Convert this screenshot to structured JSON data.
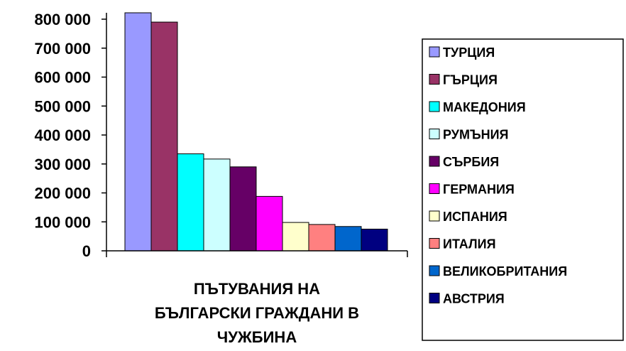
{
  "chart_data": {
    "type": "bar",
    "title": "",
    "xlabel": "ПЪТУВАНИЯ НА БЪЛГАРСКИ ГРАЖДАНИ В ЧУЖБИНА",
    "xlabel_lines": [
      "ПЪТУВАНИЯ НА",
      "БЪЛГАРСКИ ГРАЖДАНИ В",
      "ЧУЖБИНА"
    ],
    "ylabel": "",
    "ylim": [
      0,
      800000
    ],
    "ytick_values": [
      0,
      100000,
      200000,
      300000,
      400000,
      500000,
      600000,
      700000,
      800000
    ],
    "ytick_labels": [
      "0",
      "100 000",
      "200 000",
      "300 000",
      "400 000",
      "500 000",
      "600 000",
      "700 000",
      "800 000"
    ],
    "grid": false,
    "legend_position": "right",
    "series": [
      {
        "name": "ТУРЦИЯ",
        "value": 830000,
        "color": "#9999FF"
      },
      {
        "name": "ГЪРЦИЯ",
        "value": 790000,
        "color": "#993366"
      },
      {
        "name": "МАКЕДОНИЯ",
        "value": 335000,
        "color": "#00FFFF"
      },
      {
        "name": "РУМЪНИЯ",
        "value": 317000,
        "color": "#CCFFFF"
      },
      {
        "name": "СЪРБИЯ",
        "value": 290000,
        "color": "#660066"
      },
      {
        "name": "ГЕРМАНИЯ",
        "value": 188000,
        "color": "#FF00FF"
      },
      {
        "name": "ИСПАНИЯ",
        "value": 98000,
        "color": "#FFFFCC"
      },
      {
        "name": "ИТАЛИЯ",
        "value": 91000,
        "color": "#FF8080"
      },
      {
        "name": "ВЕЛИКОБРИТАНИЯ",
        "value": 84000,
        "color": "#0066CC"
      },
      {
        "name": "АВСТРИЯ",
        "value": 75000,
        "color": "#000080"
      }
    ]
  }
}
